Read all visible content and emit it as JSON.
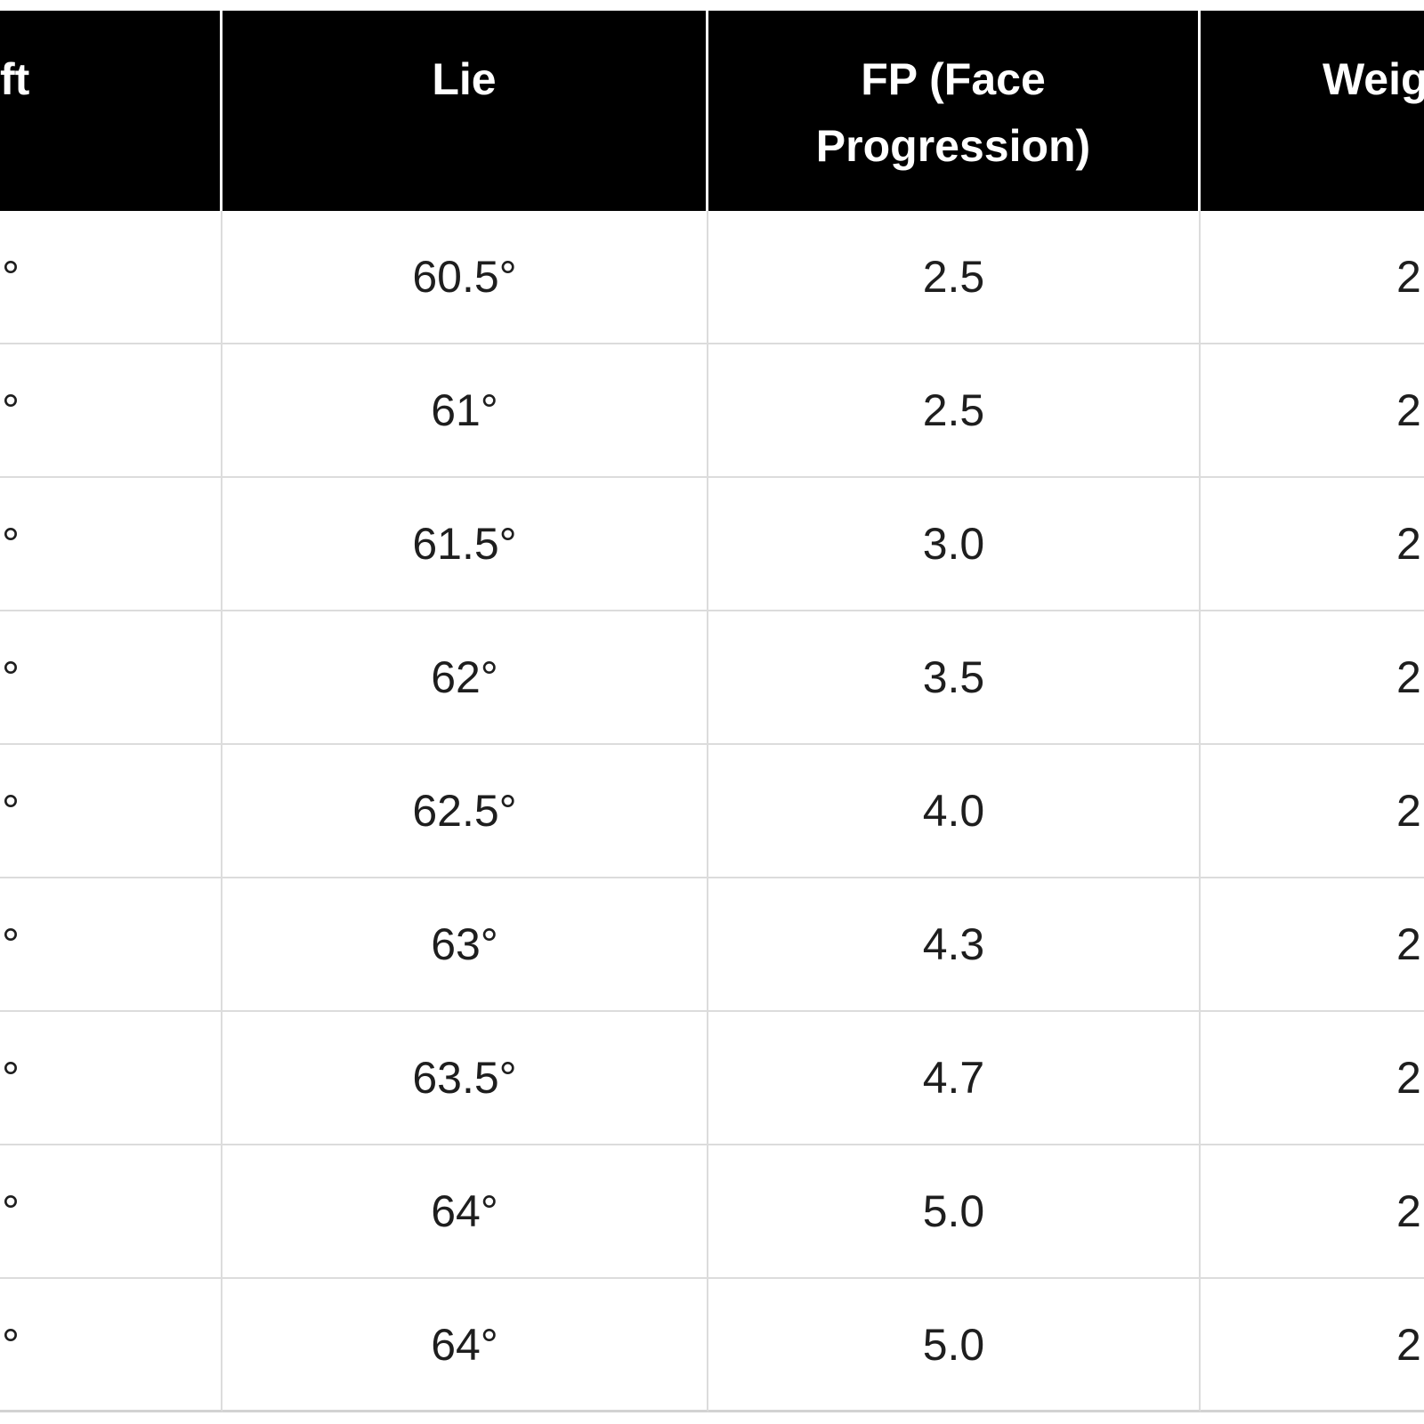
{
  "table": {
    "headers": {
      "loft": "ft",
      "lie": "Lie",
      "fp": "FP (Face Progression)",
      "weight": "Weig"
    },
    "rows": [
      {
        "loft": "°",
        "lie": "60.5°",
        "fp": "2.5",
        "weight": "2"
      },
      {
        "loft": "°",
        "lie": "61°",
        "fp": "2.5",
        "weight": "2"
      },
      {
        "loft": "°",
        "lie": "61.5°",
        "fp": "3.0",
        "weight": "2"
      },
      {
        "loft": "°",
        "lie": "62°",
        "fp": "3.5",
        "weight": "2"
      },
      {
        "loft": "°",
        "lie": "62.5°",
        "fp": "4.0",
        "weight": "2"
      },
      {
        "loft": "°",
        "lie": "63°",
        "fp": "4.3",
        "weight": "2"
      },
      {
        "loft": "°",
        "lie": "63.5°",
        "fp": "4.7",
        "weight": "2"
      },
      {
        "loft": "°",
        "lie": "64°",
        "fp": "5.0",
        "weight": "2"
      },
      {
        "loft": "°",
        "lie": "64°",
        "fp": "5.0",
        "weight": "2"
      }
    ]
  },
  "colors": {
    "header_bg": "#000000",
    "header_text": "#ffffff",
    "body_text": "#1e1e1e",
    "grid_line": "#dcdcdc",
    "background": "#ffffff"
  }
}
